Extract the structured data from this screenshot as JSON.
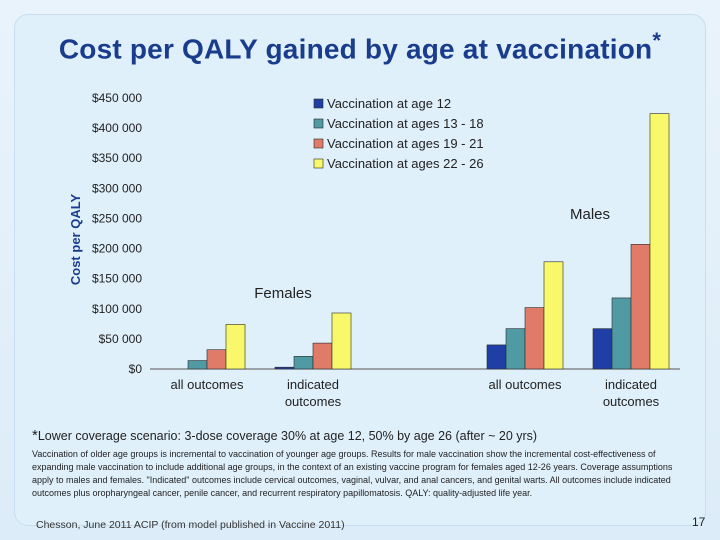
{
  "title": "Cost per QALY gained by age at vaccination",
  "title_marker": "*",
  "chart_data": {
    "type": "bar",
    "ylabel": "Cost per QALY",
    "ylim": [
      0,
      450000
    ],
    "yticks": [
      "$0",
      "$50 000",
      "$100 000",
      "$150 000",
      "$200 000",
      "$250 000",
      "$300 000",
      "$350 000",
      "$400 000",
      "$450 000"
    ],
    "groups": [
      {
        "label": "Females",
        "categories": [
          "all outcomes",
          "indicated outcomes"
        ]
      },
      {
        "label": "Males",
        "categories": [
          "all outcomes",
          "indicated outcomes"
        ]
      }
    ],
    "categories": [
      "all outcomes",
      "indicated outcomes",
      "all outcomes",
      "indicated outcomes"
    ],
    "series": [
      {
        "name": "Vaccination at age 12",
        "color": "#1f3fa6",
        "values": [
          0,
          3000,
          40000,
          67000
        ]
      },
      {
        "name": "Vaccination at ages 13 - 18",
        "color": "#4f9aa3",
        "values": [
          14000,
          21000,
          67000,
          118000
        ]
      },
      {
        "name": "Vaccination at ages 19 - 21",
        "color": "#e07b6a",
        "values": [
          32000,
          43000,
          102000,
          207000
        ]
      },
      {
        "name": "Vaccination at ages 22 - 26",
        "color": "#f8f86a",
        "values": [
          74000,
          93000,
          178000,
          424000
        ]
      }
    ],
    "grid": false,
    "legend": "top-right"
  },
  "footnote_marker": "*",
  "footnote": "Lower coverage scenario: 3-dose coverage 30% at age 12, 50% by age 26 (after ~ 20 yrs)",
  "body_text": "Vaccination of older age groups is incremental to vaccination of younger age groups. Results for male vaccination show the incremental cost-effectiveness of expanding male vaccination to include additional age groups, in the context of an existing vaccine program for females aged 12-26 years. Coverage assumptions apply to males and females. \"Indicated\" outcomes include cervical outcomes, vaginal, vulvar, and anal cancers, and genital warts. All outcomes include indicated outcomes plus oropharyngeal cancer, penile cancer, and recurrent respiratory papillomatosis. QALY: quality-adjusted life year.",
  "source": "Chesson, June 2011 ACIP (from model published in Vaccine 2011)",
  "page_number": "17"
}
